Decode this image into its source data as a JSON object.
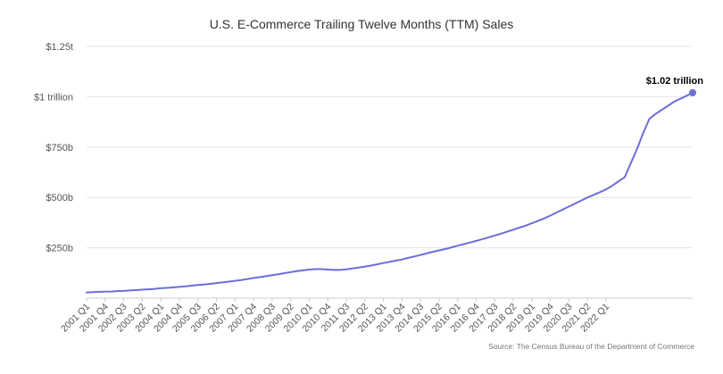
{
  "chart_data": {
    "type": "line",
    "title": "U.S. E-Commerce Trailing Twelve Months (TTM) Sales",
    "source": "Source: The Census Bureau of the Department of Commerce",
    "color": "#6b6fd8",
    "ylim": [
      0,
      1.25
    ],
    "y_unit": "trillions of USD",
    "yticks": [
      {
        "value": 0.25,
        "label": "$250b"
      },
      {
        "value": 0.5,
        "label": "$500b"
      },
      {
        "value": 0.75,
        "label": "$750b"
      },
      {
        "value": 1.0,
        "label": "$1 trillion"
      },
      {
        "value": 1.25,
        "label": "$1.25t"
      }
    ],
    "x_tick_labels": [
      "2001 Q1",
      "2001 Q4",
      "2002 Q3",
      "2003 Q2",
      "2004 Q1",
      "2004 Q4",
      "2005 Q3",
      "2006 Q2",
      "2007 Q1",
      "2007 Q4",
      "2008 Q3",
      "2009 Q2",
      "2010 Q1",
      "2010 Q4",
      "2011 Q3",
      "2012 Q2",
      "2013 Q1",
      "2013 Q4",
      "2014 Q3",
      "2015 Q2",
      "2016 Q1",
      "2016 Q4",
      "2017 Q3",
      "2018 Q2",
      "2019 Q1",
      "2019 Q4",
      "2020 Q3",
      "2021 Q2",
      "2022 Q1"
    ],
    "end_label": "$1.02 trillion",
    "series": [
      {
        "values": [
          0.028,
          0.03,
          0.031,
          0.032,
          0.033,
          0.035,
          0.036,
          0.038,
          0.04,
          0.042,
          0.044,
          0.046,
          0.049,
          0.051,
          0.053,
          0.056,
          0.059,
          0.062,
          0.065,
          0.068,
          0.071,
          0.075,
          0.078,
          0.082,
          0.086,
          0.09,
          0.095,
          0.1,
          0.104,
          0.109,
          0.114,
          0.119,
          0.124,
          0.129,
          0.134,
          0.138,
          0.142,
          0.144,
          0.144,
          0.142,
          0.14,
          0.14,
          0.143,
          0.147,
          0.152,
          0.157,
          0.162,
          0.168,
          0.174,
          0.18,
          0.186,
          0.192,
          0.2,
          0.207,
          0.214,
          0.222,
          0.23,
          0.237,
          0.244,
          0.252,
          0.26,
          0.268,
          0.276,
          0.284,
          0.293,
          0.302,
          0.311,
          0.32,
          0.33,
          0.34,
          0.35,
          0.36,
          0.372,
          0.384,
          0.396,
          0.41,
          0.425,
          0.44,
          0.455,
          0.47,
          0.485,
          0.5,
          0.513,
          0.526,
          0.54,
          0.558,
          0.58,
          0.6,
          0.67,
          0.74,
          0.82,
          0.89,
          0.915,
          0.935,
          0.955,
          0.975,
          0.99,
          1.005,
          1.02
        ]
      }
    ]
  }
}
